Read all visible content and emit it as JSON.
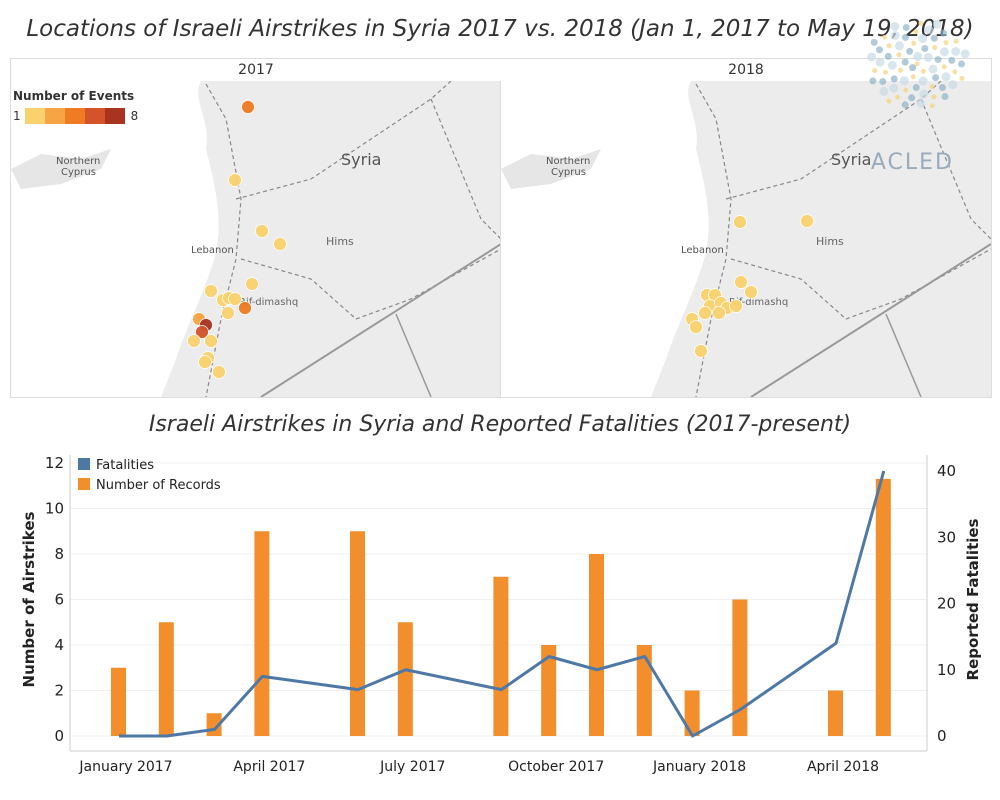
{
  "main_title": "Locations of Israeli Airstrikes in Syria 2017 vs. 2018 (Jan 1, 2017 to May 19, 2018)",
  "chart_title": "Israeli Airstrikes in Syria and Reported Fatalities (2017-present)",
  "logo": {
    "text": "ACLED"
  },
  "maps": [
    {
      "year": "2017",
      "labels": [
        {
          "text": "Northern"
        },
        {
          "text": "Cyprus"
        },
        {
          "text": "Syria"
        },
        {
          "text": "Hims"
        },
        {
          "text": "Lebanon"
        },
        {
          "text": "Rif-dimashq"
        }
      ],
      "legend": {
        "title": "Number of Events",
        "min": "1",
        "max": "8",
        "colors": [
          "#f9d26e",
          "#f7a444",
          "#ef7b22",
          "#d4532a",
          "#a8331e"
        ]
      }
    },
    {
      "year": "2018",
      "labels": [
        {
          "text": "Northern"
        },
        {
          "text": "Cyprus"
        },
        {
          "text": "Syria"
        },
        {
          "text": "Hims"
        },
        {
          "text": "Lebanon"
        },
        {
          "text": "Rif-dimashq"
        }
      ]
    }
  ],
  "chart_data": {
    "type": "bar",
    "title": "Israeli Airstrikes in Syria and Reported Fatalities (2017-present)",
    "categories": [
      "Jan 2017",
      "Feb 2017",
      "Mar 2017",
      "Apr 2017",
      "May 2017",
      "Jun 2017",
      "Jul 2017",
      "Aug 2017",
      "Sep 2017",
      "Oct 2017",
      "Nov 2017",
      "Dec 2017",
      "Jan 2018",
      "Feb 2018",
      "Mar 2018",
      "Apr 2018",
      "May 2018"
    ],
    "series": [
      {
        "name": "Number of Records",
        "type": "bar",
        "axis": "left",
        "color": "#f28e2b",
        "values": [
          3,
          5,
          1,
          9,
          null,
          9,
          5,
          null,
          7,
          4,
          8,
          4,
          2,
          6,
          null,
          2,
          11.3
        ]
      },
      {
        "name": "Fatalities",
        "type": "line",
        "axis": "right",
        "color": "#4e79a7",
        "values": [
          0,
          0,
          1,
          9,
          null,
          7,
          10,
          null,
          7,
          12,
          10,
          12,
          0,
          4,
          null,
          14,
          40
        ]
      }
    ],
    "ylabel": "Number of Airstrikes",
    "y2label": "Reported Fatalities",
    "ylim": [
      0,
      12
    ],
    "y2lim": [
      0,
      40
    ],
    "yticks": [
      0,
      2,
      4,
      6,
      8,
      10,
      12
    ],
    "y2ticks": [
      0,
      10,
      20,
      30,
      40
    ],
    "xticks": [
      {
        "label": "January 2017",
        "index": 0
      },
      {
        "label": "April 2017",
        "index": 3
      },
      {
        "label": "July 2017",
        "index": 6
      },
      {
        "label": "October 2017",
        "index": 9
      },
      {
        "label": "January 2018",
        "index": 12
      },
      {
        "label": "April 2018",
        "index": 15
      }
    ],
    "legend": [
      "Fatalities",
      "Number of Records"
    ]
  }
}
